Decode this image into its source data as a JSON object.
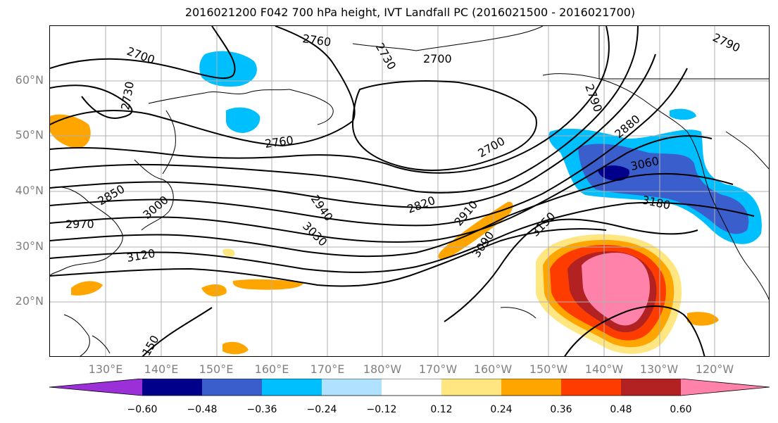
{
  "title": "2016021200 F042 700 hPa height, IVT Landfall PC (2016021500 - 2016021700)",
  "lat_labels": [
    "60°N",
    "50°N",
    "40°N",
    "30°N",
    "20°N"
  ],
  "lon_labels": [
    "130°E",
    "140°E",
    "150°E",
    "160°E",
    "170°E",
    "180°W",
    "170°W",
    "160°W",
    "150°W",
    "140°W",
    "130°W",
    "120°W"
  ],
  "colorbar": {
    "ticks": [
      "−0.60",
      "−0.48",
      "−0.36",
      "−0.24",
      "−0.12",
      "0.12",
      "0.24",
      "0.36",
      "0.48",
      "0.60"
    ],
    "colors": [
      "#9b30d9",
      "#00008b",
      "#3a5fcd",
      "#00bfff",
      "#b0e2ff",
      "#ffffff",
      "#ffe680",
      "#ffa500",
      "#ff3c00",
      "#b22222",
      "#ff82ab"
    ]
  },
  "contour_labels": [
    "2700",
    "2760",
    "2730",
    "2700",
    "2790",
    "2730",
    "2790",
    "2880",
    "2760",
    "3060",
    "2850",
    "2700",
    "2820",
    "2910",
    "3180",
    "2970",
    "3000",
    "2940",
    "3030",
    "3090",
    "3150",
    "3120",
    "150"
  ],
  "colors": {
    "land_outline": "#000000",
    "grid": "#b0b0b0",
    "axis_label": "#808080"
  }
}
